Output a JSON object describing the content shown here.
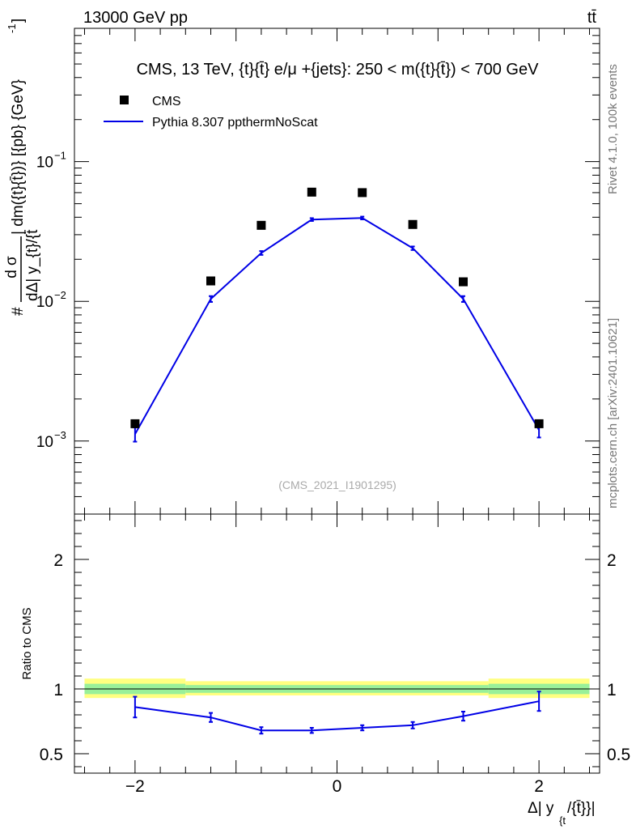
{
  "header": {
    "energy_label": "13000 GeV pp",
    "process_label": "tt̄"
  },
  "side_labels": {
    "rivet": "Rivet 4.1.0,  100k events",
    "mcplots": "mcplots.cern.ch [arXiv:2401.10621]"
  },
  "watermark": "(CMS_2021_I1901295)",
  "colors": {
    "mc_line": "#0000e6",
    "data_marker": "#000000",
    "band_inner": "#99f099",
    "band_outer": "#ffff80"
  },
  "chart_data": [
    {
      "type": "scatter",
      "title": "CMS, 13 TeV, {t}{t̄} e/μ +{jets}: 250 < m({t}{t̄}) < 700 GeV",
      "ylabel": "# d σ / dΔ| y_{t}/{t̄}| dm({t}{t̄}) [{pb} {GeV}^-1]",
      "ylabel_top": "d σ",
      "ylabel_bottom": "dΔ| y_{t}/{t̄",
      "ylabel_rest": "| dm({t}{t̄})} [{pb} {GeV}",
      "ylabel_exp": "-1",
      "ylabel_close": "]",
      "yscale": "log",
      "ylim": [
        0.0003,
        0.9
      ],
      "xlim": [
        -2.6,
        2.6
      ],
      "yticks": [
        {
          "value": 0.1,
          "base": "10",
          "exp": "−1"
        },
        {
          "value": 0.01,
          "base": "10",
          "exp": "−2"
        },
        {
          "value": 0.001,
          "base": "10",
          "exp": "−3"
        }
      ],
      "legend": {
        "position": "top-left",
        "data_label": "CMS",
        "mc_label": "Pythia 8.307 ppthermNoScat"
      },
      "series": [
        {
          "name": "CMS",
          "x": [
            -2.0,
            -1.25,
            -0.75,
            -0.25,
            0.25,
            0.75,
            1.25,
            2.0
          ],
          "y": [
            0.00133,
            0.014,
            0.035,
            0.0605,
            0.06,
            0.0355,
            0.0138,
            0.00133
          ]
        },
        {
          "name": "Pythia 8.307 ppthermNoScat",
          "x": [
            -2.0,
            -1.25,
            -0.75,
            -0.25,
            0.25,
            0.75,
            1.25,
            2.0
          ],
          "y": [
            0.00112,
            0.0104,
            0.0222,
            0.0385,
            0.0395,
            0.024,
            0.0104,
            0.0012
          ],
          "yerr": [
            0.00013,
            0.0005,
            0.0007,
            0.0009,
            0.0009,
            0.0007,
            0.0005,
            0.00014
          ]
        }
      ]
    },
    {
      "type": "line",
      "ylabel": "Ratio to CMS",
      "xlabel": "Δ| y_{t}/{t̄}|",
      "xlabel_main": "Δ| y",
      "xlabel_sub": "{t",
      "xlabel_tail": "/{t̄}}|",
      "ylim": [
        0.35,
        2.35
      ],
      "xlim": [
        -2.6,
        2.6
      ],
      "yticks": [
        0.5,
        1,
        2
      ],
      "ytick_labels": [
        "0.5",
        "1",
        "2"
      ],
      "xticks": [
        -2,
        0,
        2
      ],
      "xtick_labels": [
        "−2",
        "0",
        "2"
      ],
      "bands": [
        {
          "x0": -2.5,
          "x1": -1.5,
          "inner": [
            0.96,
            1.04
          ],
          "outer": [
            0.93,
            1.08
          ]
        },
        {
          "x0": -1.5,
          "x1": 1.5,
          "inner": [
            0.97,
            1.03
          ],
          "outer": [
            0.95,
            1.06
          ]
        },
        {
          "x0": 1.5,
          "x1": 2.5,
          "inner": [
            0.96,
            1.04
          ],
          "outer": [
            0.93,
            1.08
          ]
        }
      ],
      "series": [
        {
          "name": "Pythia 8.307 ppthermNoScat / CMS",
          "x": [
            -2.0,
            -1.25,
            -0.75,
            -0.25,
            0.25,
            0.75,
            1.25,
            2.0
          ],
          "y": [
            0.86,
            0.78,
            0.68,
            0.68,
            0.7,
            0.72,
            0.79,
            0.905
          ],
          "yerr": [
            0.08,
            0.035,
            0.025,
            0.02,
            0.02,
            0.025,
            0.035,
            0.075
          ]
        }
      ]
    }
  ]
}
